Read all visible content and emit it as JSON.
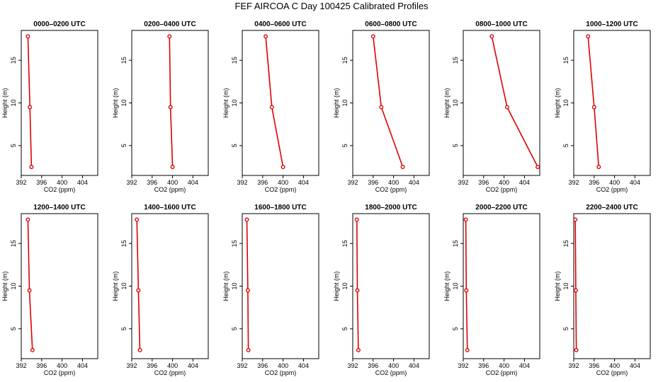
{
  "figure": {
    "title": "FEF AIRCOA C  Day 100425  Calibrated Profiles",
    "line_color": "#dd0000",
    "background": "#ffffff"
  },
  "chart_data": [
    {
      "type": "line",
      "title": "0000–0200 UTC",
      "xlabel": "CO2 (ppm)",
      "ylabel": "Height (m)",
      "xlim": [
        392,
        407
      ],
      "ylim": [
        1.5,
        18.5
      ],
      "x_ticks": [
        392,
        396,
        400,
        404
      ],
      "y_ticks": [
        5,
        10,
        15
      ],
      "grid": false,
      "x": [
        394.0,
        393.7,
        393.3
      ],
      "y": [
        2.5,
        9.5,
        17.8
      ]
    },
    {
      "type": "line",
      "title": "0200–0400 UTC",
      "xlabel": "CO2 (ppm)",
      "ylabel": "Height (m)",
      "xlim": [
        392,
        407
      ],
      "ylim": [
        1.5,
        18.5
      ],
      "x_ticks": [
        392,
        396,
        400,
        404
      ],
      "y_ticks": [
        5,
        10,
        15
      ],
      "grid": false,
      "x": [
        400.0,
        399.6,
        399.4
      ],
      "y": [
        2.5,
        9.5,
        17.8
      ]
    },
    {
      "type": "line",
      "title": "0400–0600 UTC",
      "xlabel": "CO2 (ppm)",
      "ylabel": "Height (m)",
      "xlim": [
        392,
        407
      ],
      "ylim": [
        1.5,
        18.5
      ],
      "x_ticks": [
        392,
        396,
        400,
        404
      ],
      "y_ticks": [
        5,
        10,
        15
      ],
      "grid": false,
      "x": [
        400.0,
        397.8,
        396.6
      ],
      "y": [
        2.5,
        9.5,
        17.8
      ]
    },
    {
      "type": "line",
      "title": "0600–0800 UTC",
      "xlabel": "CO2 (ppm)",
      "ylabel": "Height (m)",
      "xlim": [
        392,
        407
      ],
      "ylim": [
        1.5,
        18.5
      ],
      "x_ticks": [
        392,
        396,
        400,
        404
      ],
      "y_ticks": [
        5,
        10,
        15
      ],
      "grid": false,
      "x": [
        401.8,
        397.6,
        396.0
      ],
      "y": [
        2.5,
        9.5,
        17.8
      ]
    },
    {
      "type": "line",
      "title": "0800–1000 UTC",
      "xlabel": "CO2 (ppm)",
      "ylabel": "Height (m)",
      "xlim": [
        392,
        407
      ],
      "ylim": [
        1.5,
        18.5
      ],
      "x_ticks": [
        392,
        396,
        400,
        404
      ],
      "y_ticks": [
        5,
        10,
        15
      ],
      "grid": false,
      "x": [
        406.6,
        400.6,
        397.6
      ],
      "y": [
        2.5,
        9.5,
        17.8
      ]
    },
    {
      "type": "line",
      "title": "1000–1200 UTC",
      "xlabel": "CO2 (ppm)",
      "ylabel": "Height (m)",
      "xlim": [
        392,
        407
      ],
      "ylim": [
        1.5,
        18.5
      ],
      "x_ticks": [
        392,
        396,
        400,
        404
      ],
      "y_ticks": [
        5,
        10,
        15
      ],
      "grid": false,
      "x": [
        396.9,
        396.0,
        394.8
      ],
      "y": [
        2.5,
        9.5,
        17.8
      ]
    },
    {
      "type": "line",
      "title": "1200–1400 UTC",
      "xlabel": "CO2 (ppm)",
      "ylabel": "Height (m)",
      "xlim": [
        392,
        407
      ],
      "ylim": [
        1.5,
        18.5
      ],
      "x_ticks": [
        392,
        396,
        400,
        404
      ],
      "y_ticks": [
        5,
        10,
        15
      ],
      "grid": false,
      "x": [
        394.2,
        393.6,
        393.3
      ],
      "y": [
        2.5,
        9.5,
        17.8
      ]
    },
    {
      "type": "line",
      "title": "1400–1600 UTC",
      "xlabel": "CO2 (ppm)",
      "ylabel": "Height (m)",
      "xlim": [
        392,
        407
      ],
      "ylim": [
        1.5,
        18.5
      ],
      "x_ticks": [
        392,
        396,
        400,
        404
      ],
      "y_ticks": [
        5,
        10,
        15
      ],
      "grid": false,
      "x": [
        393.6,
        393.3,
        393.0
      ],
      "y": [
        2.5,
        9.5,
        17.8
      ]
    },
    {
      "type": "line",
      "title": "1600–1800 UTC",
      "xlabel": "CO2 (ppm)",
      "ylabel": "Height (m)",
      "xlim": [
        392,
        407
      ],
      "ylim": [
        1.5,
        18.5
      ],
      "x_ticks": [
        392,
        396,
        400,
        404
      ],
      "y_ticks": [
        5,
        10,
        15
      ],
      "grid": false,
      "x": [
        393.2,
        393.1,
        392.9
      ],
      "y": [
        2.5,
        9.5,
        17.8
      ]
    },
    {
      "type": "line",
      "title": "1800–2000 UTC",
      "xlabel": "CO2 (ppm)",
      "ylabel": "Height (m)",
      "xlim": [
        392,
        407
      ],
      "ylim": [
        1.5,
        18.5
      ],
      "x_ticks": [
        392,
        396,
        400,
        404
      ],
      "y_ticks": [
        5,
        10,
        15
      ],
      "grid": false,
      "x": [
        393.1,
        392.9,
        392.8
      ],
      "y": [
        2.5,
        9.5,
        17.8
      ]
    },
    {
      "type": "line",
      "title": "2000–2200 UTC",
      "xlabel": "CO2 (ppm)",
      "ylabel": "Height (m)",
      "xlim": [
        392,
        407
      ],
      "ylim": [
        1.5,
        18.5
      ],
      "x_ticks": [
        392,
        396,
        400,
        404
      ],
      "y_ticks": [
        5,
        10,
        15
      ],
      "grid": false,
      "x": [
        392.8,
        392.6,
        392.5
      ],
      "y": [
        2.5,
        9.5,
        17.8
      ]
    },
    {
      "type": "line",
      "title": "2200–2400 UTC",
      "xlabel": "CO2 (ppm)",
      "ylabel": "Height (m)",
      "xlim": [
        392,
        407
      ],
      "ylim": [
        1.5,
        18.5
      ],
      "x_ticks": [
        392,
        396,
        400,
        404
      ],
      "y_ticks": [
        5,
        10,
        15
      ],
      "grid": false,
      "x": [
        392.5,
        392.4,
        392.3
      ],
      "y": [
        2.5,
        9.5,
        17.8
      ]
    }
  ]
}
